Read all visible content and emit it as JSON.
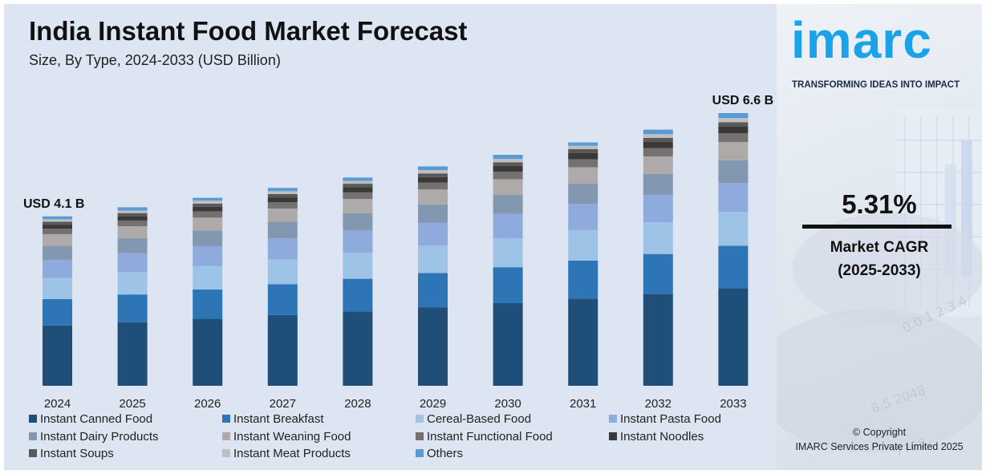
{
  "title": "India Instant Food Market Forecast",
  "subtitle": "Size, By Type, 2024-2033 (USD Billion)",
  "brand": {
    "logo_text": "imarc",
    "tagline": "TRANSFORMING IDEAS INTO IMPACT",
    "accent_color": "#1aa3e8"
  },
  "cagr": {
    "value": "5.31%",
    "label": "Market CAGR",
    "period": "(2025-2033)"
  },
  "footer": {
    "copyright": "© Copyright",
    "company": "IMARC Services Private Limited 2025"
  },
  "chart_data": {
    "type": "bar",
    "stacked": true,
    "title": "India Instant Food Market Forecast",
    "subtitle": "Size, By Type, 2024-2033 (USD Billion)",
    "xlabel": "",
    "ylabel": "",
    "ylim": [
      0,
      6.6
    ],
    "grid": false,
    "legend_position": "bottom",
    "categories": [
      "2024",
      "2025",
      "2026",
      "2027",
      "2028",
      "2029",
      "2030",
      "2031",
      "2032",
      "2033"
    ],
    "totals": [
      4.1,
      4.32,
      4.55,
      4.79,
      5.04,
      5.31,
      5.59,
      5.89,
      6.2,
      6.6
    ],
    "annotations": [
      {
        "category": "2024",
        "text": "USD 4.1 B"
      },
      {
        "category": "2033",
        "text": "USD 6.6 B"
      }
    ],
    "series": [
      {
        "name": "Instant Canned Food",
        "color": "#1f4e79",
        "values": [
          1.46,
          1.54,
          1.62,
          1.71,
          1.8,
          1.9,
          2.0,
          2.11,
          2.22,
          2.36
        ]
      },
      {
        "name": "Instant Breakfast",
        "color": "#2e75b6",
        "values": [
          0.64,
          0.67,
          0.71,
          0.75,
          0.79,
          0.83,
          0.87,
          0.92,
          0.97,
          1.03
        ]
      },
      {
        "name": "Cereal-Based Food",
        "color": "#9dc3e6",
        "values": [
          0.51,
          0.54,
          0.57,
          0.6,
          0.63,
          0.66,
          0.7,
          0.74,
          0.77,
          0.82
        ]
      },
      {
        "name": "Instant Pasta Food",
        "color": "#8faadc",
        "values": [
          0.44,
          0.46,
          0.48,
          0.51,
          0.54,
          0.56,
          0.59,
          0.63,
          0.66,
          0.7
        ]
      },
      {
        "name": "Instant Dairy Products",
        "color": "#8497b0",
        "values": [
          0.34,
          0.36,
          0.38,
          0.4,
          0.42,
          0.44,
          0.46,
          0.49,
          0.51,
          0.55
        ]
      },
      {
        "name": "Instant Weaning Food",
        "color": "#aeaaaa",
        "values": [
          0.28,
          0.29,
          0.31,
          0.32,
          0.34,
          0.36,
          0.38,
          0.4,
          0.42,
          0.44
        ]
      },
      {
        "name": "Instant Functional Food",
        "color": "#767171",
        "values": [
          0.13,
          0.14,
          0.15,
          0.15,
          0.16,
          0.17,
          0.18,
          0.19,
          0.2,
          0.21
        ]
      },
      {
        "name": "Instant Noodles",
        "color": "#3b3838",
        "values": [
          0.1,
          0.11,
          0.11,
          0.12,
          0.13,
          0.13,
          0.14,
          0.15,
          0.15,
          0.16
        ]
      },
      {
        "name": "Instant Soups",
        "color": "#595959",
        "values": [
          0.07,
          0.07,
          0.08,
          0.08,
          0.08,
          0.09,
          0.09,
          0.1,
          0.1,
          0.11
        ]
      },
      {
        "name": "Instant Meat Products",
        "color": "#bfbfbf",
        "values": [
          0.06,
          0.06,
          0.07,
          0.07,
          0.07,
          0.08,
          0.08,
          0.08,
          0.09,
          0.1
        ]
      },
      {
        "name": "Others",
        "color": "#5b9bd5",
        "values": [
          0.07,
          0.08,
          0.07,
          0.08,
          0.08,
          0.09,
          0.1,
          0.08,
          0.11,
          0.12
        ]
      }
    ]
  }
}
